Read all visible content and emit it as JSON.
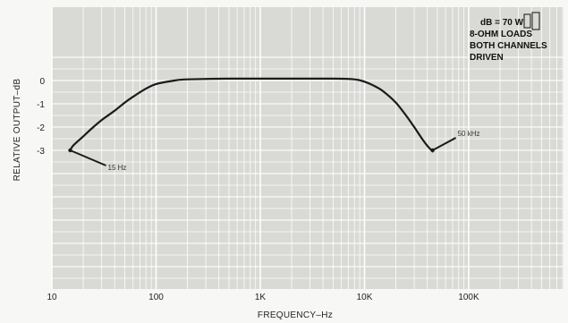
{
  "chart_data": {
    "type": "line",
    "title": "",
    "xlabel": "FREQUENCY–Hz",
    "ylabel": "RELATIVE OUTPUT–dB",
    "x_scale": "log",
    "xlim": [
      10,
      1000000
    ],
    "ylim": [
      -8.5,
      1.3
    ],
    "x_ticks": [
      10,
      100,
      1000,
      10000,
      100000
    ],
    "x_tick_labels": [
      "10",
      "100",
      "1K",
      "10K",
      "100K"
    ],
    "y_ticks": [
      0,
      -1,
      -2,
      -3
    ],
    "y_tick_labels": [
      "0",
      "-1",
      "-2",
      "-3"
    ],
    "grid": true,
    "legend_position": "top-right",
    "legend_lines": [
      "dB = 70 W",
      "8-OHM LOADS",
      "BOTH CHANNELS",
      "DRIVEN"
    ],
    "series": [
      {
        "x": [
          15,
          16,
          20,
          25,
          30,
          40,
          50,
          60,
          80,
          100,
          150,
          200,
          500,
          1000,
          2000,
          5000,
          8000,
          10000,
          12000,
          15000,
          20000,
          25000,
          30000,
          35000,
          40000,
          45000
        ],
        "y": [
          -3.0,
          -2.8,
          -2.4,
          -2.0,
          -1.7,
          -1.3,
          -0.95,
          -0.7,
          -0.35,
          -0.15,
          0.0,
          0.05,
          0.08,
          0.08,
          0.08,
          0.08,
          0.05,
          -0.05,
          -0.2,
          -0.45,
          -0.95,
          -1.5,
          -2.0,
          -2.45,
          -2.8,
          -3.05
        ]
      }
    ],
    "annotations": [
      {
        "text": "15 Hz",
        "x": 15,
        "y": -3.0
      },
      {
        "text": "50 kHz",
        "x": 45000,
        "y": -3.0
      }
    ]
  }
}
